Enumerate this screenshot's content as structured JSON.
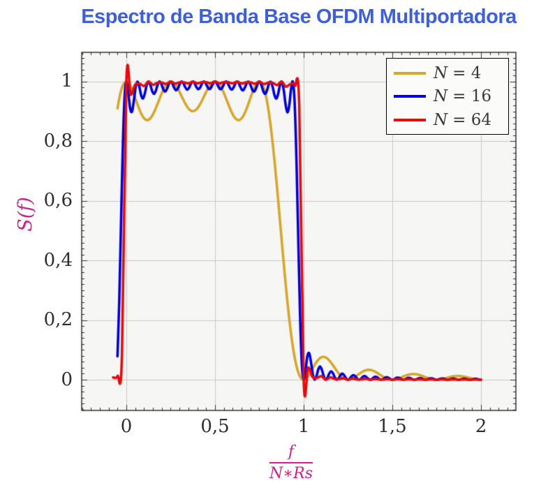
{
  "chart": {
    "title": "Espectro de Banda Base OFDM Multiportadora",
    "title_color": "#3D5FD9",
    "axis_label_color": "#C9248E",
    "tick_color": "#2e2e2e",
    "border_color": "#000000",
    "minor_tick_color": "#333333"
  },
  "chart_data": {
    "type": "line",
    "title": "Espectro de Banda Base OFDM Multiportadora",
    "ylabel": "S(f)",
    "xlabel": "f/(N∗Rs)",
    "xlabel_numerator": "f",
    "xlabel_denominator": "N∗Rs",
    "xlim": [
      -0.252,
      2.197
    ],
    "ylim": [
      -0.103,
      1.098
    ],
    "x_ticks": [
      0,
      0.5,
      1,
      1.5,
      2
    ],
    "x_tick_labels": [
      "0",
      "0,5",
      "1",
      "1,5",
      "2"
    ],
    "y_ticks": [
      0,
      0.2,
      0.4,
      0.6,
      0.8,
      1
    ],
    "y_tick_labels": [
      "0",
      "0,2",
      "0,4",
      "0,6",
      "0,8",
      "1"
    ],
    "x_minor_step": 0.05,
    "y_minor_step": 0.02,
    "grid": true,
    "grid_color": "#c8c8c8",
    "plot_bg": "#f6f6f4",
    "legend_position": "top-right",
    "legend": {
      "entries": [
        {
          "var": "N",
          "rest": "= 4"
        },
        {
          "var": "N",
          "rest": "= 16"
        },
        {
          "var": "N",
          "rest": "= 64"
        }
      ]
    },
    "model": "S_N(x) = sum_{k=0}^{N-1} sinc^2(N*x - k), x = f/(N*Rs); drawn with smooth spline interpolation",
    "series": [
      {
        "name": "N = 4",
        "N": 4,
        "color": "#D7A62B",
        "x_start": -0.05,
        "x_end": 2.0,
        "step": 0.0103,
        "key_features": {
          "passband": [
            0,
            1
          ],
          "peak": 1.0,
          "lobes": 4,
          "ripple_min": 0.87,
          "half_power_edge": 0.875,
          "sidelobes": [
            {
              "x": 1.125,
              "y": 0.073
            },
            {
              "x": 1.375,
              "y": 0.033
            },
            {
              "x": 1.625,
              "y": 0.019
            },
            {
              "x": 1.875,
              "y": 0.012
            }
          ]
        }
      },
      {
        "name": "N = 16",
        "N": 16,
        "color": "#0000DC",
        "x_start": -0.05,
        "x_end": 2.0,
        "step": 0.0103,
        "key_features": {
          "passband": [
            0,
            1
          ],
          "peak": 1.0,
          "lobes": 16,
          "ripple_min_interior": 0.975,
          "ripple_min_edge": 0.88,
          "half_power_edge": 0.969,
          "first_sidelobe": {
            "x": 1.03,
            "y": 0.073
          }
        }
      },
      {
        "name": "N = 64",
        "N": 64,
        "color": "#E60C0C",
        "x_start": -0.075,
        "x_end": 2.0,
        "step": 0.025,
        "key_features": {
          "passband": [
            0,
            1
          ],
          "flat_level": 1.0,
          "overshoot_spikes": [
            {
              "x": 0.985,
              "y": 1.05
            },
            {
              "x": 0.02,
              "y": 1.03
            }
          ],
          "undershoot_hook": {
            "x": -0.035,
            "y": -0.026
          },
          "half_power_edges": [
            0.0,
            1.0
          ],
          "tail_max": 0.03
        }
      }
    ]
  }
}
